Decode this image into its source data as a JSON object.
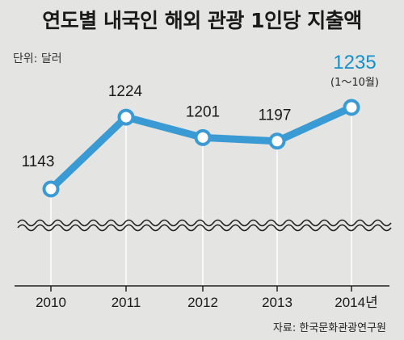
{
  "title": "연도별 내국인 해외 관광 1인당 지출액",
  "unit_label": "단위: 달러",
  "source": "자료: 한국문화관광연구원",
  "colors": {
    "line": "#3a9ad4",
    "highlight": "#1590c8",
    "background": "#e4e4e2",
    "grid": "#ffffff"
  },
  "chart_data": {
    "type": "line",
    "categories": [
      "2010",
      "2011",
      "2012",
      "2013",
      "2014년"
    ],
    "values": [
      1143,
      1224,
      1201,
      1197,
      1235
    ],
    "data_labels": [
      "1143",
      "1224",
      "1201",
      "1197",
      "1235"
    ],
    "annotations": [
      {
        "category": "2014년",
        "text": "(1～10월)"
      }
    ],
    "axis_break": true,
    "grid": "vertical"
  }
}
